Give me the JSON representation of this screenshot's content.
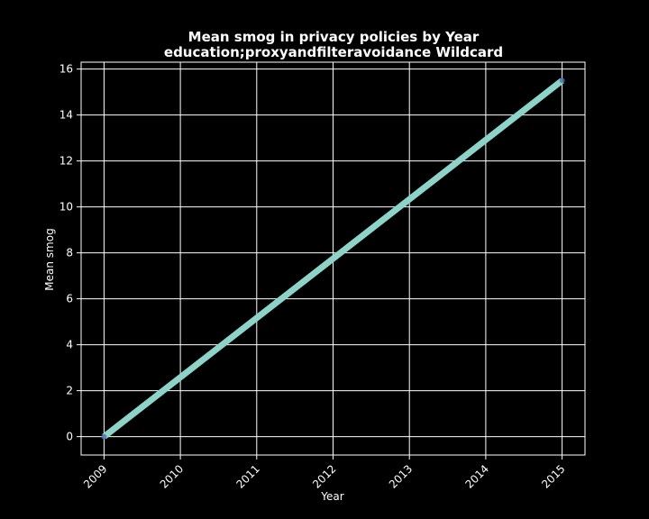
{
  "chart_data": {
    "type": "line",
    "title": "Mean smog in privacy policies by Year",
    "subtitle": "education;proxyandfilteravoidance Wildcard",
    "xlabel": "Year",
    "ylabel": "Mean smog",
    "x": [
      2009,
      2015
    ],
    "series": [
      {
        "values": [
          0.0,
          15.5
        ]
      }
    ],
    "xticks": [
      "2009",
      "2010",
      "2011",
      "2012",
      "2013",
      "2014",
      "2015"
    ],
    "yticks": [
      "0",
      "2",
      "4",
      "6",
      "8",
      "10",
      "12",
      "14",
      "16"
    ],
    "xlim": [
      2008.7,
      2015.3
    ],
    "ylim": [
      -0.8,
      16.3
    ],
    "grid": true,
    "colors": {
      "background": "#000000",
      "line": "#8dd3c7",
      "marker": "#4c72b0",
      "grid": "#ffffff",
      "text": "#ffffff"
    }
  }
}
